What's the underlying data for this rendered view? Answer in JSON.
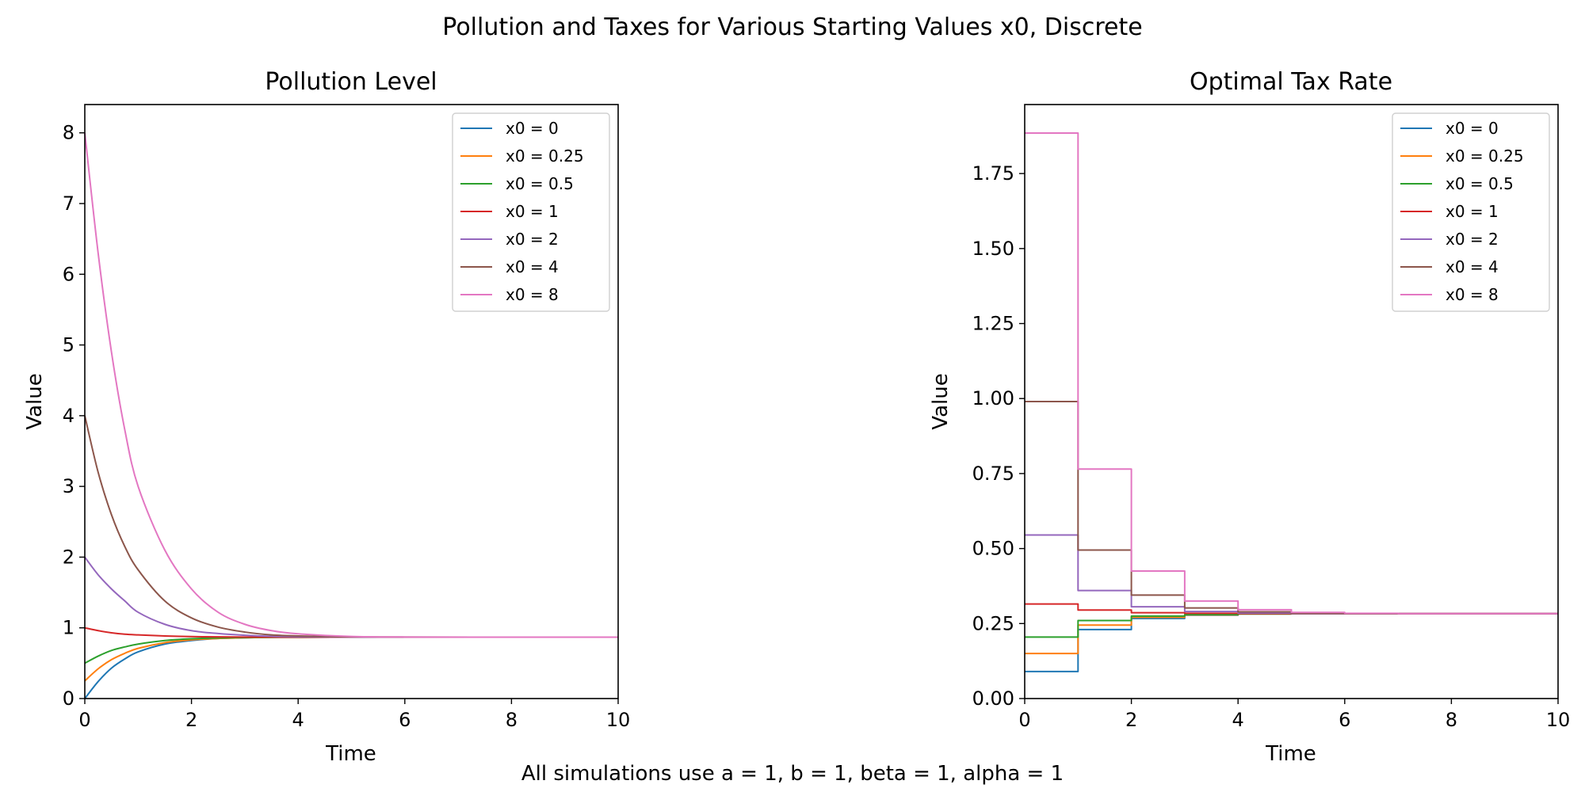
{
  "figure": {
    "suptitle": "Pollution and Taxes for Various Starting Values x0, Discrete",
    "footnote": "All simulations use a = 1, b = 1, beta = 1, alpha = 1"
  },
  "chart_data": [
    {
      "type": "line",
      "title": "Pollution Level",
      "xlabel": "Time",
      "ylabel": "Value",
      "xlim": [
        0,
        10
      ],
      "ylim": [
        0,
        8.4
      ],
      "xticks": [
        0,
        2,
        4,
        6,
        8,
        10
      ],
      "yticks": [
        0,
        1,
        2,
        3,
        4,
        5,
        6,
        7,
        8
      ],
      "grid": false,
      "legend": "upper right",
      "steady_state": 0.868,
      "x": [
        0,
        0.25,
        0.5,
        0.75,
        1,
        1.5,
        2,
        2.5,
        3,
        3.5,
        4,
        5,
        6,
        8,
        10
      ],
      "series": [
        {
          "name": "x0 = 0",
          "color": "#1f77b4",
          "values": [
            0.0,
            0.24,
            0.43,
            0.56,
            0.66,
            0.77,
            0.82,
            0.85,
            0.86,
            0.865,
            0.867,
            0.868,
            0.868,
            0.868,
            0.868
          ]
        },
        {
          "name": "x0 = 0.25",
          "color": "#ff7f0e",
          "values": [
            0.25,
            0.42,
            0.55,
            0.64,
            0.71,
            0.79,
            0.83,
            0.85,
            0.86,
            0.865,
            0.867,
            0.868,
            0.868,
            0.868,
            0.868
          ]
        },
        {
          "name": "x0 = 0.5",
          "color": "#2ca02c",
          "values": [
            0.5,
            0.6,
            0.68,
            0.73,
            0.77,
            0.82,
            0.845,
            0.857,
            0.863,
            0.866,
            0.867,
            0.868,
            0.868,
            0.868,
            0.868
          ]
        },
        {
          "name": "x0 = 1",
          "color": "#d62728",
          "values": [
            1.0,
            0.96,
            0.93,
            0.91,
            0.9,
            0.885,
            0.876,
            0.872,
            0.87,
            0.869,
            0.868,
            0.868,
            0.868,
            0.868,
            0.868
          ]
        },
        {
          "name": "x0 = 2",
          "color": "#9467bd",
          "values": [
            2.0,
            1.75,
            1.55,
            1.38,
            1.22,
            1.05,
            0.96,
            0.92,
            0.895,
            0.88,
            0.874,
            0.869,
            0.868,
            0.868,
            0.868
          ]
        },
        {
          "name": "x0 = 4",
          "color": "#8c564b",
          "values": [
            4.0,
            3.2,
            2.6,
            2.15,
            1.82,
            1.38,
            1.14,
            1.01,
            0.94,
            0.9,
            0.885,
            0.872,
            0.869,
            0.868,
            0.868
          ]
        },
        {
          "name": "x0 = 8",
          "color": "#e377c2",
          "values": [
            8.0,
            6.3,
            4.9,
            3.8,
            3.0,
            2.1,
            1.55,
            1.22,
            1.05,
            0.96,
            0.915,
            0.878,
            0.87,
            0.868,
            0.868
          ]
        }
      ]
    },
    {
      "type": "line",
      "step": "post",
      "title": "Optimal Tax Rate",
      "xlabel": "Time",
      "ylabel": "Value",
      "xlim": [
        0,
        10
      ],
      "ylim": [
        0,
        1.98
      ],
      "xticks": [
        0,
        2,
        4,
        6,
        8,
        10
      ],
      "yticks": [
        "0.00",
        "0.25",
        "0.50",
        "0.75",
        "1.00",
        "1.25",
        "1.50",
        "1.75"
      ],
      "grid": false,
      "legend": "upper right",
      "x": [
        0,
        1,
        2,
        3,
        4,
        5,
        6,
        7,
        8,
        9,
        10
      ],
      "series": [
        {
          "name": "x0 = 0",
          "color": "#1f77b4",
          "values": [
            0.09,
            0.23,
            0.267,
            0.278,
            0.282,
            0.283,
            0.283,
            0.283,
            0.283,
            0.283,
            0.283
          ]
        },
        {
          "name": "x0 = 0.25",
          "color": "#ff7f0e",
          "values": [
            0.15,
            0.245,
            0.271,
            0.279,
            0.282,
            0.283,
            0.283,
            0.283,
            0.283,
            0.283,
            0.283
          ]
        },
        {
          "name": "x0 = 0.5",
          "color": "#2ca02c",
          "values": [
            0.205,
            0.26,
            0.275,
            0.28,
            0.282,
            0.283,
            0.283,
            0.283,
            0.283,
            0.283,
            0.283
          ]
        },
        {
          "name": "x0 = 1",
          "color": "#d62728",
          "values": [
            0.315,
            0.295,
            0.286,
            0.284,
            0.283,
            0.283,
            0.283,
            0.283,
            0.283,
            0.283,
            0.283
          ]
        },
        {
          "name": "x0 = 2",
          "color": "#9467bd",
          "values": [
            0.545,
            0.36,
            0.306,
            0.29,
            0.285,
            0.283,
            0.283,
            0.283,
            0.283,
            0.283,
            0.283
          ]
        },
        {
          "name": "x0 = 4",
          "color": "#8c564b",
          "values": [
            0.99,
            0.495,
            0.345,
            0.302,
            0.289,
            0.284,
            0.283,
            0.283,
            0.283,
            0.283,
            0.283
          ]
        },
        {
          "name": "x0 = 8",
          "color": "#e377c2",
          "values": [
            1.885,
            0.765,
            0.425,
            0.325,
            0.296,
            0.287,
            0.284,
            0.283,
            0.283,
            0.283,
            0.283
          ]
        }
      ]
    }
  ]
}
